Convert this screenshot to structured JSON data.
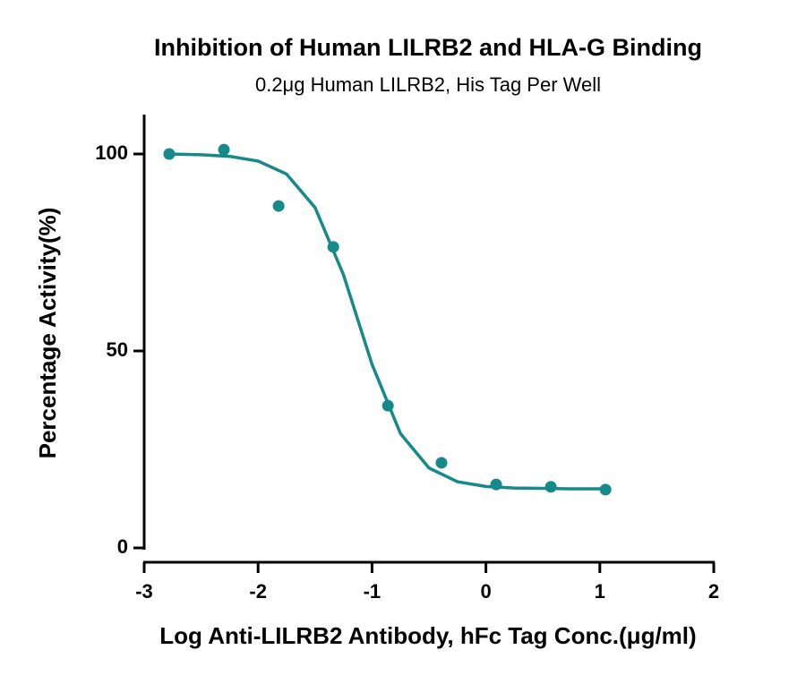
{
  "chart_data": {
    "type": "scatter",
    "title": "Inhibition of Human LILRB2 and HLA-G Binding",
    "subtitle": "0.2μg Human LILRB2, His Tag Per Well",
    "x_label": "Log Anti-LILRB2 Antibody, hFc Tag Conc.(μg/ml)",
    "y_label": "Percentage Activity(%)",
    "xlim": [
      -3,
      2
    ],
    "ylim": [
      0,
      110
    ],
    "xticks": [
      -3,
      -2,
      -1,
      0,
      1,
      2
    ],
    "yticks": [
      0,
      50,
      100
    ],
    "grid": false,
    "series": [
      {
        "style": "markers",
        "color": "#16898a",
        "x": [
          -2.78,
          -2.3,
          -1.82,
          -1.34,
          -0.86,
          -0.39,
          0.09,
          0.57,
          1.05
        ],
        "values": [
          100,
          101.1,
          86.8,
          76.4,
          36.1,
          21.6,
          16.1,
          15.5,
          14.8
        ]
      },
      {
        "style": "line",
        "color": "#16898a",
        "x": [
          -2.78,
          -2.5,
          -2.25,
          -2.0,
          -1.75,
          -1.5,
          -1.25,
          -1.0,
          -0.75,
          -0.5,
          -0.25,
          0,
          0.25,
          0.5,
          0.75,
          1.05
        ],
        "values": [
          100.0,
          99.8,
          99.4,
          98.2,
          94.9,
          86.4,
          69.3,
          46.6,
          29.0,
          20.3,
          16.8,
          15.6,
          15.2,
          15.1,
          15.0,
          15.0
        ]
      }
    ]
  }
}
